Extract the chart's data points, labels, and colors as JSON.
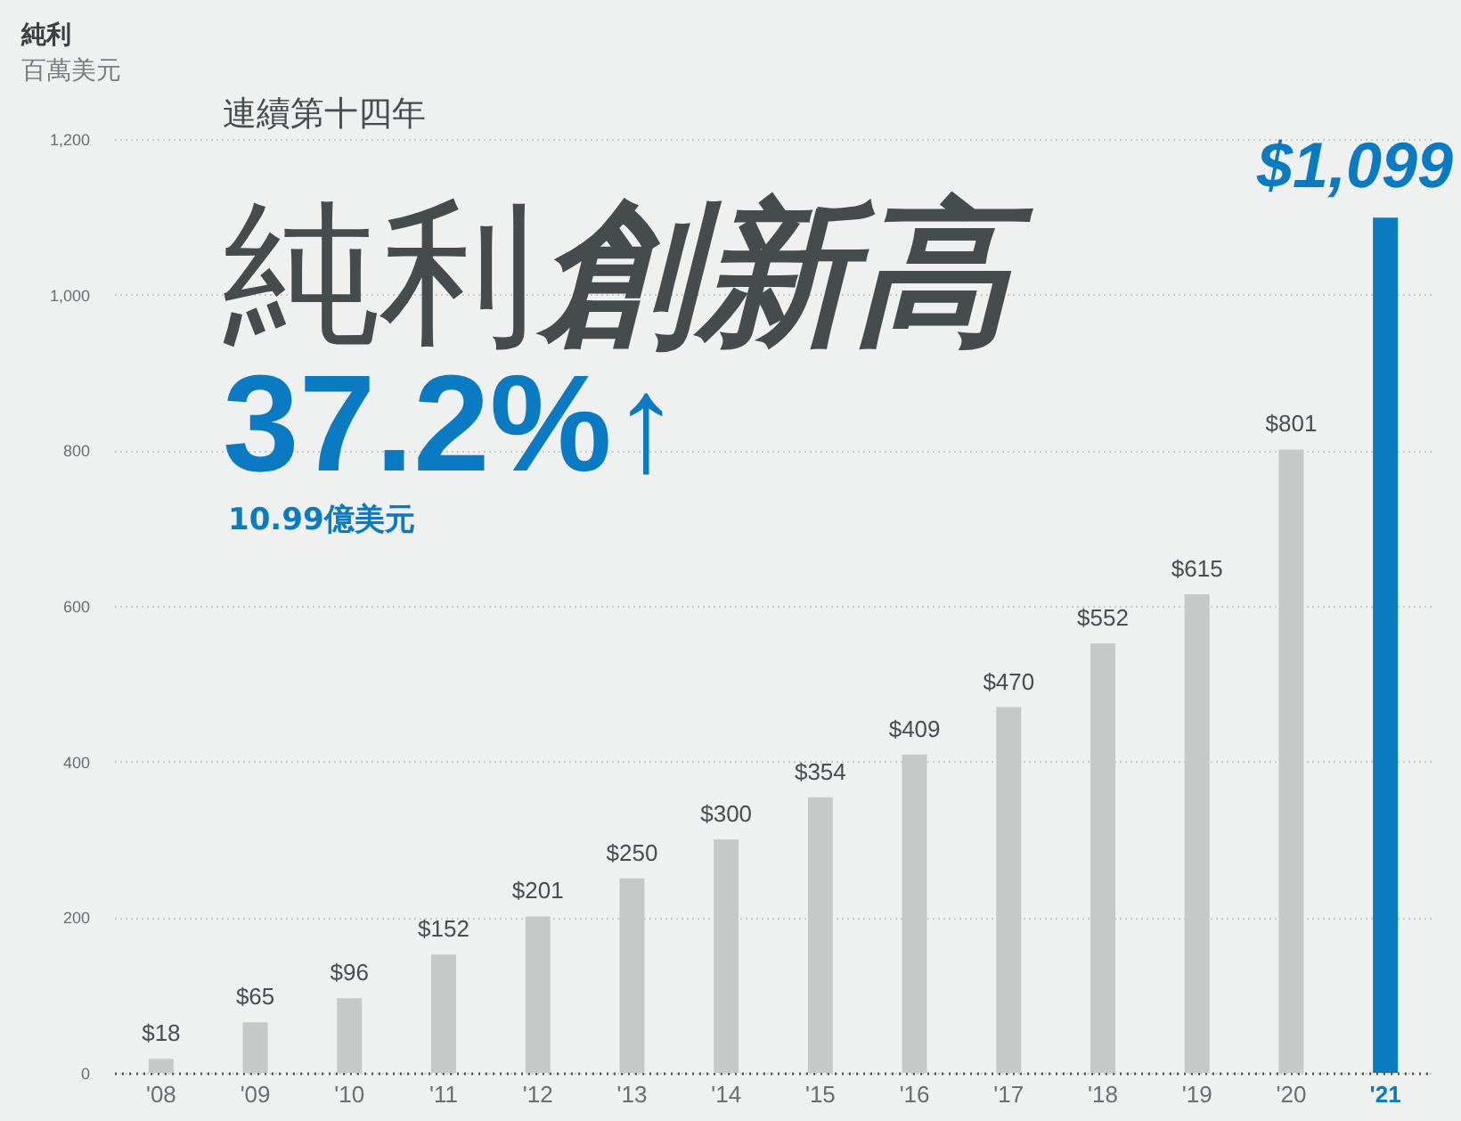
{
  "chart_data": {
    "type": "bar",
    "title": "純利",
    "subtitle": "百萬美元",
    "categories": [
      "'08",
      "'09",
      "'10",
      "'11",
      "'12",
      "'13",
      "'14",
      "'15",
      "'16",
      "'17",
      "'18",
      "'19",
      "'20",
      "'21"
    ],
    "values": [
      18,
      65,
      96,
      152,
      201,
      250,
      300,
      354,
      409,
      470,
      552,
      615,
      801,
      1099
    ],
    "colors": [
      "#c6c9c8",
      "#c6c9c8",
      "#c6c9c8",
      "#c6c9c8",
      "#c6c9c8",
      "#c6c9c8",
      "#c6c9c8",
      "#c6c9c8",
      "#c6c9c8",
      "#c6c9c8",
      "#c6c9c8",
      "#c6c9c8",
      "#c6c9c8",
      "#0a7bc2"
    ],
    "value_labels": [
      "$18",
      "$65",
      "$96",
      "$152",
      "$201",
      "$250",
      "$300",
      "$354",
      "$409",
      "$470",
      "$552",
      "$615",
      "$801",
      "$1,099"
    ],
    "ylim": [
      0,
      1200
    ],
    "yticks": [
      0,
      200,
      400,
      600,
      800,
      {
        "value": 1000,
        "label": "1,000"
      },
      {
        "value": 1200,
        "label": "1,200"
      }
    ],
    "grid": "y",
    "annotations": [
      "連續第十四年",
      "純利",
      "創新高",
      "37.2%↑",
      "10.99億美元"
    ]
  }
}
